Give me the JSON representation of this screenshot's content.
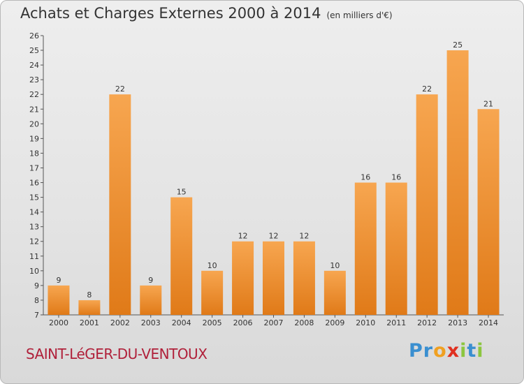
{
  "header": {
    "title": "Achats et Charges Externes 2000 à 2014",
    "unit": "(en milliers d'€)"
  },
  "place": "SAINT-LéGER-DU-VENTOUX",
  "logo": {
    "letters": [
      {
        "ch": "P",
        "color": "#3a8fd0"
      },
      {
        "ch": "r",
        "color": "#3a8fd0"
      },
      {
        "ch": "o",
        "color": "#f0a020"
      },
      {
        "ch": "x",
        "color": "#e03020"
      },
      {
        "ch": "i",
        "color": "#8cc63f"
      },
      {
        "ch": "t",
        "color": "#3a8fd0"
      },
      {
        "ch": "i",
        "color": "#8cc63f"
      }
    ]
  },
  "chart_data": {
    "type": "bar",
    "categories": [
      "2000",
      "2001",
      "2002",
      "2003",
      "2004",
      "2005",
      "2006",
      "2007",
      "2008",
      "2009",
      "2010",
      "2011",
      "2012",
      "2013",
      "2014"
    ],
    "values": [
      9,
      8,
      22,
      9,
      15,
      10,
      12,
      12,
      12,
      10,
      16,
      16,
      22,
      25,
      21
    ],
    "ylim": [
      7,
      26
    ],
    "yticks": [
      7,
      8,
      9,
      10,
      11,
      12,
      13,
      14,
      15,
      16,
      17,
      18,
      19,
      20,
      21,
      22,
      23,
      24,
      25,
      26
    ],
    "grid": false,
    "bar_color_top": "#f7a650",
    "bar_color_bottom": "#e07a18"
  }
}
